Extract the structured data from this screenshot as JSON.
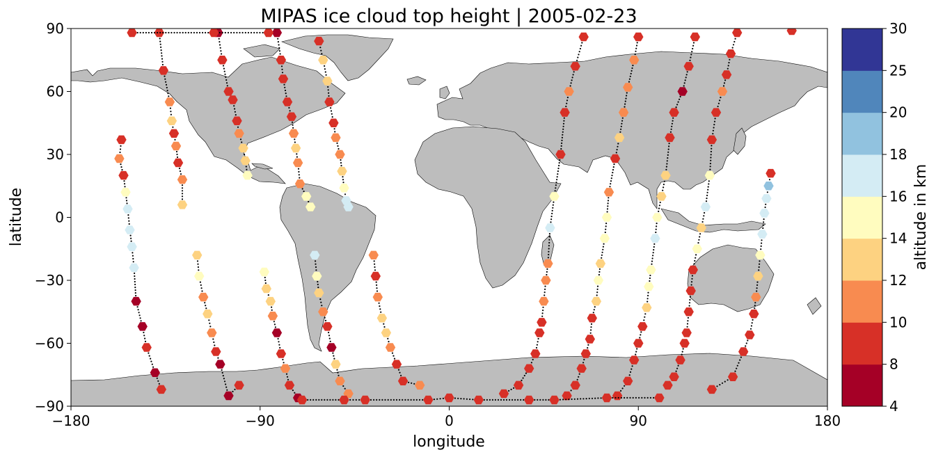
{
  "chart_data": {
    "type": "scatter",
    "title": "MIPAS ice cloud top height | 2005-02-23",
    "xlabel": "longitude",
    "ylabel": "latitude",
    "xlim": [
      -180,
      180
    ],
    "ylim": [
      -90,
      90
    ],
    "xticks": [
      "−180",
      "−90",
      "0",
      "90",
      "180"
    ],
    "yticks": [
      "90",
      "60",
      "30",
      "0",
      "−30",
      "−60",
      "−90"
    ],
    "map": "world coastlines, land shaded gray (#bdbdbd)",
    "colorbar": {
      "label": "altitude in km",
      "boundaries": [
        4,
        8,
        10,
        12,
        14,
        16,
        18,
        20,
        25,
        30
      ],
      "tick_labels": [
        "4",
        "8",
        "10",
        "12",
        "14",
        "16",
        "18",
        "20",
        "25",
        "30"
      ],
      "colors": [
        "#a50026",
        "#d73027",
        "#f46d43",
        "#fdae61",
        "#fee090",
        "#ffffbf",
        "#e0f3f8",
        "#abd9e9",
        "#74add1",
        "#4575b4",
        "#313695"
      ],
      "bin_colors": [
        "#a50026",
        "#d73027",
        "#f88b50",
        "#fdd281",
        "#fffcbf",
        "#d4ecf4",
        "#91c2df",
        "#5086bb",
        "#313695"
      ]
    },
    "tracks": [
      {
        "points": [
          [
            -138,
            88,
            8
          ],
          [
            -136,
            70,
            9
          ],
          [
            -133,
            55,
            11
          ],
          [
            -132,
            46,
            12
          ],
          [
            -131,
            40,
            9
          ],
          [
            -130,
            34,
            10
          ],
          [
            -129,
            26,
            9
          ],
          [
            -127,
            18,
            11
          ],
          [
            -127,
            6,
            12
          ]
        ]
      },
      {
        "points": [
          [
            -110,
            88,
            6
          ],
          [
            -108,
            75,
            8
          ],
          [
            -105,
            60,
            8
          ],
          [
            -103,
            56,
            9
          ],
          [
            -101,
            46,
            8
          ],
          [
            -100,
            40,
            10
          ],
          [
            -98,
            33,
            12
          ],
          [
            -97,
            27,
            13
          ],
          [
            -96,
            20,
            14
          ]
        ]
      },
      {
        "points": [
          [
            -82,
            88,
            6
          ],
          [
            -80,
            75,
            8
          ],
          [
            -79,
            66,
            8
          ],
          [
            -77,
            55,
            9
          ],
          [
            -75,
            48,
            9
          ],
          [
            -74,
            40,
            10
          ],
          [
            -73,
            33,
            12
          ],
          [
            -72,
            26,
            11
          ],
          [
            -71,
            16,
            10
          ],
          [
            -68,
            10,
            15
          ],
          [
            -66,
            5,
            14
          ]
        ]
      },
      {
        "points": [
          [
            -62,
            84,
            8
          ],
          [
            -60,
            75,
            12
          ],
          [
            -58,
            65,
            13
          ],
          [
            -57,
            55,
            9
          ],
          [
            -55,
            45,
            9
          ],
          [
            -54,
            38,
            10
          ],
          [
            -52,
            30,
            11
          ],
          [
            -51,
            22,
            12
          ],
          [
            -50,
            14,
            15
          ],
          [
            -49,
            8,
            16
          ],
          [
            -48,
            5,
            16
          ]
        ]
      },
      {
        "points": [
          [
            -156,
            37,
            9
          ],
          [
            -157,
            28,
            11
          ],
          [
            -155,
            20,
            9
          ],
          [
            -154,
            12,
            15
          ],
          [
            -153,
            4,
            16
          ],
          [
            -152,
            -6,
            17
          ],
          [
            -151,
            -14,
            17
          ],
          [
            -150,
            -24,
            16
          ],
          [
            -149,
            -40,
            7
          ],
          [
            -146,
            -52,
            7
          ],
          [
            -144,
            -62,
            8
          ],
          [
            -140,
            -74,
            7
          ],
          [
            -137,
            -82,
            8
          ]
        ]
      },
      {
        "points": [
          [
            -120,
            -18,
            13
          ],
          [
            -119,
            -28,
            14
          ],
          [
            -117,
            -38,
            11
          ],
          [
            -115,
            -46,
            12
          ],
          [
            -113,
            -55,
            11
          ],
          [
            -111,
            -64,
            9
          ],
          [
            -109,
            -70,
            7
          ],
          [
            -105,
            -85,
            7
          ],
          [
            -100,
            -80,
            8
          ]
        ]
      },
      {
        "points": [
          [
            -88,
            -26,
            14
          ],
          [
            -87,
            -34,
            13
          ],
          [
            -85,
            -40,
            12
          ],
          [
            -84,
            -47,
            11
          ],
          [
            -82,
            -55,
            7
          ],
          [
            -80,
            -65,
            8
          ],
          [
            -78,
            -72,
            10
          ],
          [
            -76,
            -80,
            8
          ],
          [
            -72,
            -86,
            7
          ]
        ]
      },
      {
        "points": [
          [
            -64,
            -18,
            16
          ],
          [
            -63,
            -28,
            14
          ],
          [
            -62,
            -36,
            12
          ],
          [
            -60,
            -45,
            11
          ],
          [
            -58,
            -52,
            8
          ],
          [
            -56,
            -62,
            7
          ],
          [
            -54,
            -70,
            12
          ],
          [
            -52,
            -78,
            11
          ],
          [
            -48,
            -84,
            10
          ]
        ]
      },
      {
        "points": [
          [
            -36,
            -18,
            10
          ],
          [
            -35,
            -28,
            9
          ],
          [
            -34,
            -38,
            11
          ],
          [
            -32,
            -48,
            13
          ],
          [
            -30,
            -55,
            12
          ],
          [
            -28,
            -62,
            11
          ],
          [
            -25,
            -70,
            9
          ],
          [
            -22,
            -78,
            8
          ],
          [
            -14,
            -80,
            10
          ]
        ]
      },
      {
        "points": [
          [
            64,
            86,
            8
          ],
          [
            60,
            72,
            9
          ],
          [
            57,
            60,
            10
          ],
          [
            55,
            50,
            8
          ],
          [
            53,
            30,
            8
          ],
          [
            50,
            10,
            14
          ],
          [
            48,
            -5,
            17
          ],
          [
            47,
            -22,
            10
          ],
          [
            46,
            -30,
            10
          ],
          [
            45,
            -40,
            11
          ],
          [
            44,
            -50,
            9
          ],
          [
            43,
            -55,
            8
          ],
          [
            41,
            -65,
            9
          ],
          [
            38,
            -72,
            8
          ],
          [
            33,
            -80,
            8
          ],
          [
            26,
            -84,
            8
          ]
        ]
      },
      {
        "points": [
          [
            90,
            86,
            8
          ],
          [
            88,
            75,
            11
          ],
          [
            85,
            62,
            10
          ],
          [
            83,
            50,
            11
          ],
          [
            81,
            38,
            12
          ],
          [
            79,
            28,
            8
          ],
          [
            76,
            12,
            11
          ],
          [
            75,
            0,
            14
          ],
          [
            74,
            -10,
            15
          ],
          [
            72,
            -22,
            13
          ],
          [
            71,
            -30,
            14
          ],
          [
            70,
            -40,
            13
          ],
          [
            68,
            -48,
            9
          ],
          [
            67,
            -58,
            9
          ],
          [
            65,
            -65,
            8
          ],
          [
            63,
            -72,
            8
          ],
          [
            60,
            -80,
            8
          ],
          [
            56,
            -85,
            8
          ]
        ]
      },
      {
        "points": [
          [
            117,
            86,
            8
          ],
          [
            114,
            72,
            8
          ],
          [
            111,
            60,
            7
          ],
          [
            107,
            50,
            8
          ],
          [
            105,
            38,
            8
          ],
          [
            103,
            20,
            13
          ],
          [
            101,
            10,
            13
          ],
          [
            99,
            0,
            15
          ],
          [
            98,
            -10,
            17
          ],
          [
            96,
            -25,
            15
          ],
          [
            95,
            -33,
            14
          ],
          [
            94,
            -43,
            13
          ],
          [
            92,
            -52,
            8
          ],
          [
            90,
            -60,
            8
          ],
          [
            88,
            -68,
            8
          ],
          [
            85,
            -78,
            8
          ],
          [
            80,
            -85,
            8
          ]
        ]
      },
      {
        "points": [
          [
            137,
            88,
            8
          ],
          [
            134,
            78,
            9
          ],
          [
            132,
            68,
            9
          ],
          [
            130,
            60,
            11
          ],
          [
            127,
            50,
            8
          ],
          [
            125,
            37,
            9
          ],
          [
            124,
            20,
            14
          ],
          [
            122,
            5,
            17
          ],
          [
            120,
            -5,
            12
          ],
          [
            118,
            -15,
            14
          ],
          [
            116,
            -25,
            9
          ],
          [
            115,
            -35,
            9
          ],
          [
            114,
            -45,
            8
          ],
          [
            113,
            -55,
            8
          ],
          [
            112,
            -60,
            8
          ],
          [
            110,
            -68,
            8
          ],
          [
            107,
            -76,
            8
          ],
          [
            104,
            -80,
            8
          ]
        ]
      },
      {
        "points": [
          [
            153,
            21,
            8
          ],
          [
            152,
            15,
            18
          ],
          [
            151,
            9,
            16
          ],
          [
            150,
            2,
            17
          ],
          [
            149,
            -8,
            16
          ],
          [
            148,
            -18,
            14
          ],
          [
            147,
            -28,
            13
          ],
          [
            146,
            -38,
            11
          ],
          [
            145,
            -46,
            8
          ],
          [
            143,
            -56,
            8
          ],
          [
            140,
            -64,
            8
          ],
          [
            135,
            -76,
            8
          ],
          [
            125,
            -82,
            8
          ]
        ]
      },
      {
        "points": [
          [
            -151,
            88,
            8
          ],
          [
            -112,
            88,
            8
          ],
          [
            -86,
            88,
            8
          ],
          [
            163,
            89,
            8
          ],
          [
            -70,
            -87,
            8
          ],
          [
            -50,
            -87,
            8
          ],
          [
            -40,
            -87,
            8
          ],
          [
            -10,
            -87,
            8
          ],
          [
            0,
            -86,
            8
          ],
          [
            14,
            -87,
            8
          ],
          [
            38,
            -87,
            8
          ],
          [
            50,
            -87,
            8
          ],
          [
            75,
            -86,
            8
          ],
          [
            100,
            -86,
            8
          ]
        ]
      }
    ]
  }
}
